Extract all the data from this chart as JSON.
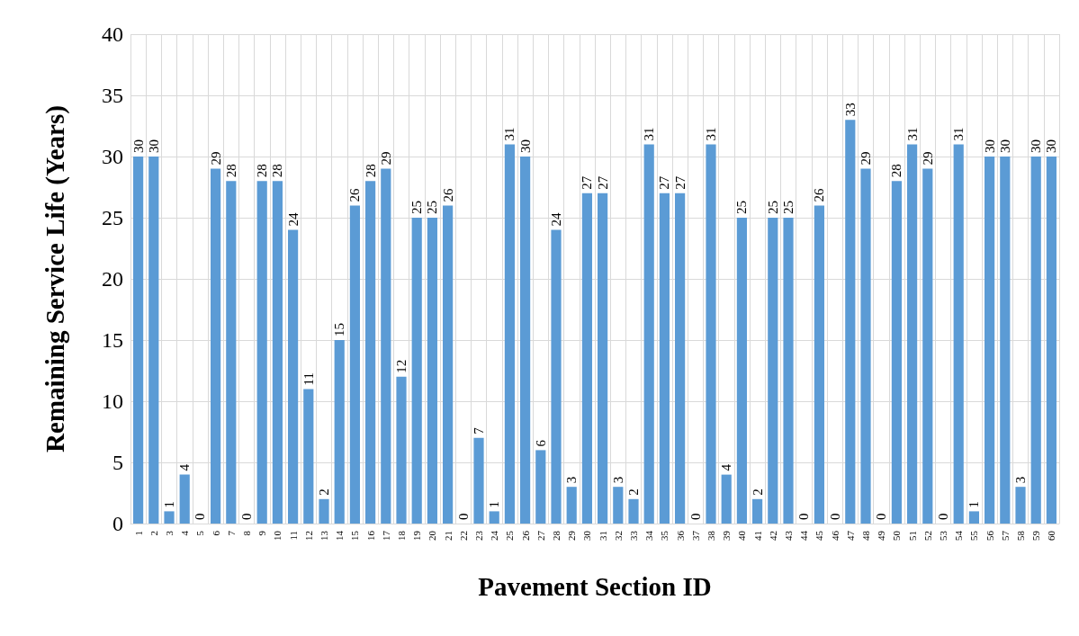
{
  "chart_data": {
    "type": "bar",
    "xlabel": "Pavement Section ID",
    "ylabel": "Remaining Service Life (Years)",
    "categories": [
      "1",
      "2",
      "3",
      "4",
      "5",
      "6",
      "7",
      "8",
      "9",
      "10",
      "11",
      "12",
      "13",
      "14",
      "15",
      "16",
      "17",
      "18",
      "19",
      "20",
      "21",
      "22",
      "23",
      "24",
      "25",
      "26",
      "27",
      "28",
      "29",
      "30",
      "31",
      "32",
      "33",
      "34",
      "35",
      "36",
      "37",
      "38",
      "39",
      "40",
      "41",
      "42",
      "43",
      "44",
      "45",
      "46",
      "47",
      "48",
      "49",
      "50",
      "51",
      "52",
      "53",
      "54",
      "55",
      "56",
      "57",
      "58",
      "59",
      "60"
    ],
    "values": [
      30,
      30,
      1,
      4,
      0,
      29,
      28,
      0,
      28,
      28,
      24,
      11,
      2,
      15,
      26,
      28,
      29,
      12,
      25,
      25,
      26,
      0,
      7,
      1,
      31,
      30,
      6,
      24,
      3,
      27,
      27,
      3,
      2,
      31,
      27,
      27,
      0,
      31,
      4,
      25,
      2,
      25,
      25,
      0,
      26,
      0,
      33,
      29,
      0,
      28,
      31,
      29,
      0,
      31,
      1,
      30,
      30,
      3,
      30,
      30
    ],
    "color": "#5b9bd5",
    "ylim": [
      0,
      40
    ],
    "yticks": [
      0,
      5,
      10,
      15,
      20,
      25,
      30,
      35,
      40
    ],
    "grid": true,
    "data_labels": true
  }
}
